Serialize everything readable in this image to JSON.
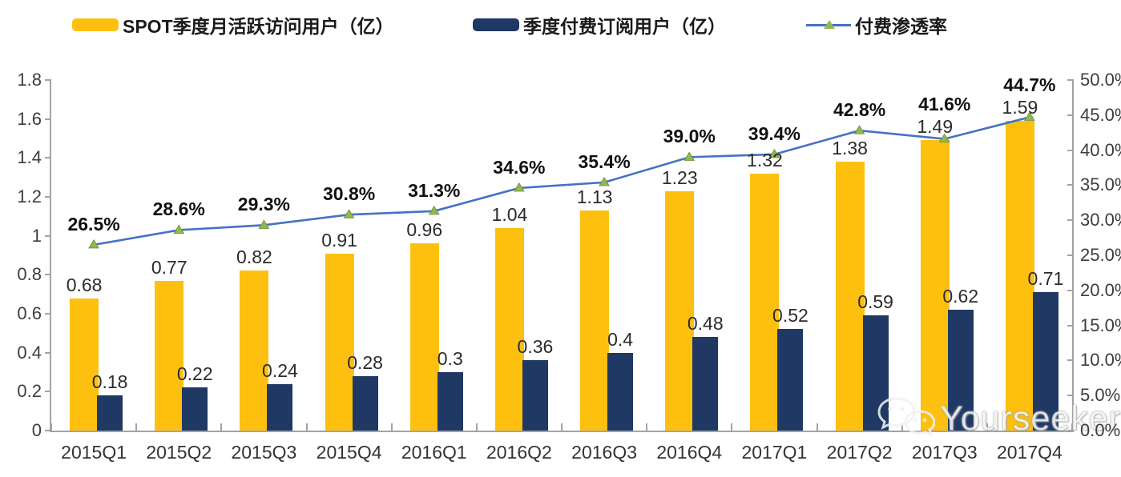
{
  "legend": {
    "items": [
      {
        "label": "SPOT季度月活跃访问用户（亿）",
        "swatch": "bar",
        "color": "#FDC00F"
      },
      {
        "label": "季度付费订阅用户（亿）",
        "swatch": "bar",
        "color": "#1F3864"
      },
      {
        "label": "付费渗透率",
        "swatch": "line",
        "color": "#4472C4",
        "marker_color": "#92B94E"
      }
    ]
  },
  "chart_data": {
    "type": "combo (bar + line)",
    "categories": [
      "2015Q1",
      "2015Q2",
      "2015Q3",
      "2015Q4",
      "2016Q1",
      "2016Q2",
      "2016Q3",
      "2016Q4",
      "2017Q1",
      "2017Q2",
      "2017Q3",
      "2017Q4"
    ],
    "series": [
      {
        "name": "SPOT季度月活跃访问用户（亿）",
        "type": "bar",
        "axis": "left",
        "color": "#FDC00F",
        "values": [
          0.68,
          0.77,
          0.82,
          0.91,
          0.96,
          1.04,
          1.13,
          1.23,
          1.32,
          1.38,
          1.49,
          1.59
        ],
        "labels": [
          "0.68",
          "0.77",
          "0.82",
          "0.91",
          "0.96",
          "1.04",
          "1.13",
          "1.23",
          "1.32",
          "1.38",
          "1.49",
          "1.59"
        ]
      },
      {
        "name": "季度付费订阅用户（亿）",
        "type": "bar",
        "axis": "left",
        "color": "#1F3864",
        "values": [
          0.18,
          0.22,
          0.24,
          0.28,
          0.3,
          0.36,
          0.4,
          0.48,
          0.52,
          0.59,
          0.62,
          0.71
        ],
        "labels": [
          "0.18",
          "0.22",
          "0.24",
          "0.28",
          "0.3",
          "0.36",
          "0.4",
          "0.48",
          "0.52",
          "0.59",
          "0.62",
          "0.71"
        ]
      },
      {
        "name": "付费渗透率",
        "type": "line",
        "axis": "right",
        "color": "#4472C4",
        "marker": "triangle",
        "marker_color": "#92B94E",
        "marker_edge": "#74953C",
        "values": [
          26.5,
          28.6,
          29.3,
          30.8,
          31.3,
          34.6,
          35.4,
          39.0,
          39.4,
          42.8,
          41.6,
          44.7
        ],
        "labels": [
          "26.5%",
          "28.6%",
          "29.3%",
          "30.8%",
          "31.3%",
          "34.6%",
          "35.4%",
          "39.0%",
          "39.4%",
          "42.8%",
          "41.6%",
          "44.7%"
        ]
      }
    ],
    "left_axis": {
      "min": 0,
      "max": 1.8,
      "step": 0.2,
      "tick_labels": [
        "0",
        "0.2",
        "0.4",
        "0.6",
        "0.8",
        "1",
        "1.2",
        "1.4",
        "1.6",
        "1.8"
      ]
    },
    "right_axis": {
      "min": 0,
      "max": 50,
      "step": 5,
      "tick_labels": [
        "0.0%",
        "5.0%",
        "10.0%",
        "15.0%",
        "20.0%",
        "25.0%",
        "30.0%",
        "35.0%",
        "40.0%",
        "45.0%",
        "50.0%"
      ]
    },
    "grid": false,
    "legend_position": "top"
  },
  "watermark": {
    "text": "Yourseeker",
    "icon": "wechat-chat-bubbles-icon"
  }
}
